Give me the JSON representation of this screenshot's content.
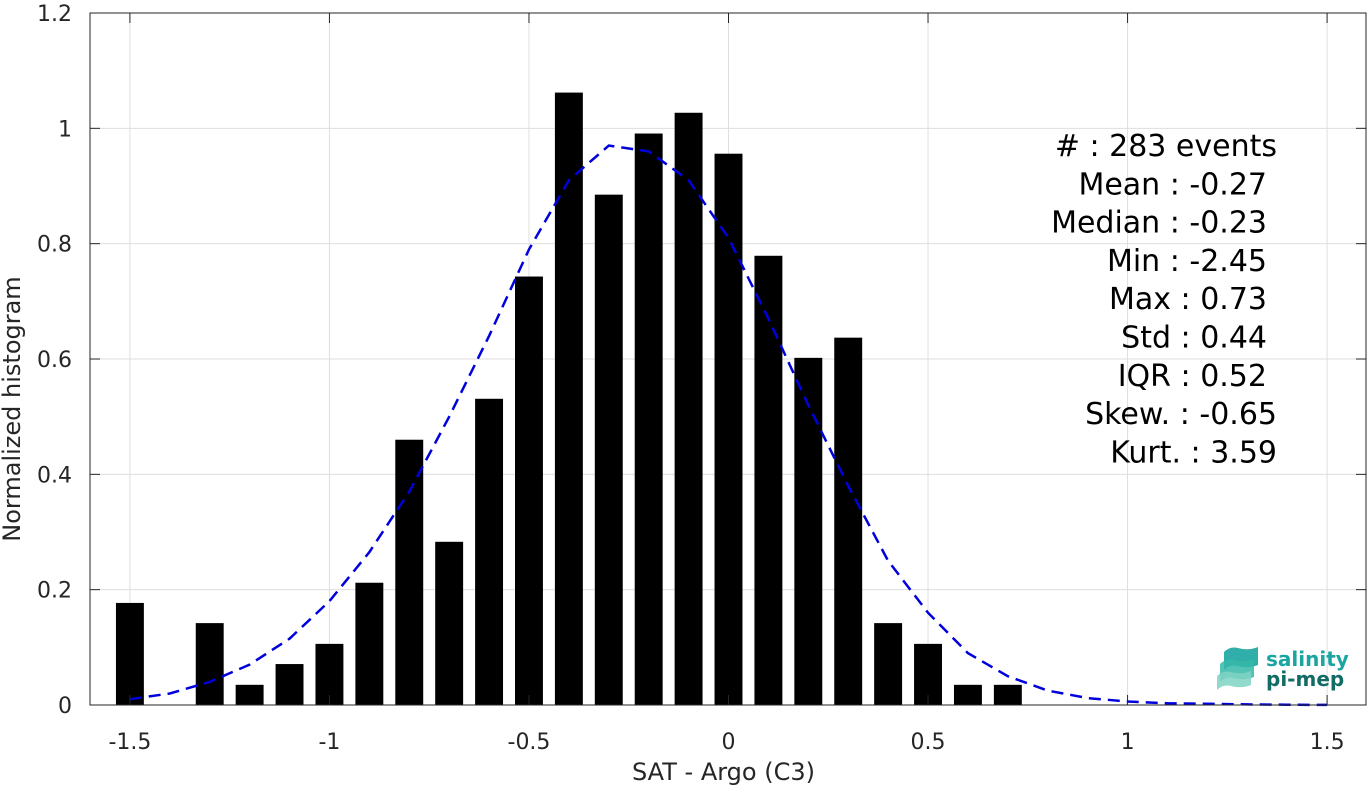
{
  "chart_data": {
    "type": "bar",
    "xlabel": "SAT - Argo (C3)",
    "ylabel": "Normalized histogram",
    "xlim": [
      -1.6,
      1.6
    ],
    "ylim": [
      0,
      1.2
    ],
    "xticks": [
      -1.5,
      -1,
      -0.5,
      0,
      0.5,
      1,
      1.5
    ],
    "xtick_labels": [
      "-1.5",
      "-1",
      "-0.5",
      "0",
      "0.5",
      "1",
      "1.5"
    ],
    "yticks": [
      0,
      0.2,
      0.4,
      0.6,
      0.8,
      1,
      1.2
    ],
    "ytick_labels": [
      "0",
      "0.2",
      "0.4",
      "0.6",
      "0.8",
      "1",
      "1.2"
    ],
    "grid": true,
    "bin_width": 0.1,
    "bars": {
      "color": "#000000",
      "x": [
        -1.5,
        -1.3,
        -1.2,
        -1.1,
        -1.0,
        -0.9,
        -0.8,
        -0.7,
        -0.6,
        -0.5,
        -0.4,
        -0.3,
        -0.2,
        -0.1,
        0.0,
        0.1,
        0.2,
        0.3,
        0.4,
        0.5,
        0.6,
        0.7
      ],
      "values": [
        0.177,
        0.142,
        0.035,
        0.071,
        0.106,
        0.212,
        0.46,
        0.283,
        0.531,
        0.743,
        1.062,
        0.885,
        0.991,
        1.027,
        0.956,
        0.779,
        0.602,
        0.637,
        0.142,
        0.106,
        0.035,
        0.035
      ]
    },
    "fit_curve": {
      "style": "dashed",
      "color": "#0000dd",
      "x": [
        -1.5,
        -1.4,
        -1.3,
        -1.2,
        -1.1,
        -1.0,
        -0.9,
        -0.8,
        -0.7,
        -0.6,
        -0.5,
        -0.4,
        -0.3,
        -0.2,
        -0.1,
        0.0,
        0.1,
        0.2,
        0.3,
        0.4,
        0.5,
        0.6,
        0.7,
        0.8,
        0.9,
        1.0,
        1.1,
        1.2,
        1.3,
        1.4,
        1.5
      ],
      "y": [
        0.01,
        0.02,
        0.04,
        0.07,
        0.115,
        0.18,
        0.265,
        0.37,
        0.5,
        0.64,
        0.79,
        0.91,
        0.97,
        0.96,
        0.91,
        0.81,
        0.67,
        0.52,
        0.38,
        0.25,
        0.16,
        0.09,
        0.05,
        0.025,
        0.012,
        0.006,
        0.003,
        0.002,
        0.001,
        0.0005,
        0.0002
      ]
    },
    "stats": [
      {
        "label": "#  : 283 events"
      },
      {
        "label": "Mean : -0.27"
      },
      {
        "label": "Median : -0.23"
      },
      {
        "label": "Min : -2.45"
      },
      {
        "label": "Max : 0.73"
      },
      {
        "label": "Std : 0.44"
      },
      {
        "label": "IQR : 0.52"
      },
      {
        "label": "Skew. : -0.65"
      },
      {
        "label": "Kurt. : 3.59"
      }
    ]
  },
  "logo": {
    "line1": "salinity",
    "line2": "pi-mep",
    "color1": "#1aa5a0",
    "color2": "#136b66"
  }
}
